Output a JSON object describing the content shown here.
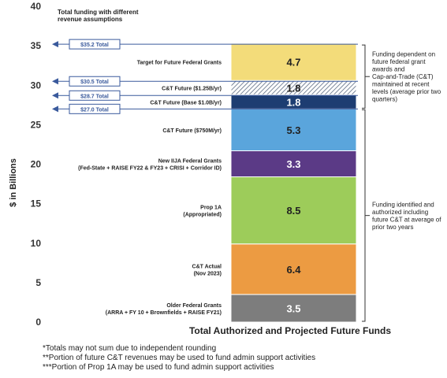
{
  "chart_data": {
    "type": "bar",
    "stacked": true,
    "title": "Total Authorized and Projected Future Funds",
    "ylabel": "$ in Billions",
    "ylim": [
      0,
      40
    ],
    "yticks": [
      "0",
      "5",
      "10",
      "15",
      "20",
      "25",
      "30",
      "35",
      "40"
    ],
    "header_note": [
      "Total funding with different",
      "revenue assumptions"
    ],
    "segments": [
      {
        "name": [
          "Older Federal Grants",
          "(ARRA + FY 10 + Brownfields + RAISE FY21)"
        ],
        "value": 3.5,
        "label": "3.5",
        "color": "#7d7d7d",
        "text_color": "#ffffff"
      },
      {
        "name": [
          "C&T Actual",
          "(Nov 2023)"
        ],
        "value": 6.4,
        "label": "6.4",
        "color": "#ec9b42",
        "text_color": "#222222"
      },
      {
        "name": [
          "Prop 1A",
          "(Appropriated)"
        ],
        "value": 8.5,
        "label": "8.5",
        "color": "#9dcc5a",
        "text_color": "#222222"
      },
      {
        "name": [
          "New IIJA Federal Grants",
          "(Fed-State + RAISE FY22 & FY23 + CRISI + Corridor ID)"
        ],
        "value": 3.3,
        "label": "3.3",
        "color": "#5b3a86",
        "text_color": "#ffffff"
      },
      {
        "name": [
          "C&T Future ($750M/yr)"
        ],
        "value": 5.3,
        "label": "5.3",
        "color": "#5aa5dc",
        "text_color": "#222222"
      },
      {
        "name": [
          "C&T Future (Base $1.0B/yr)"
        ],
        "value": 1.8,
        "label": "1.8",
        "color": "#1d3d72",
        "text_color": "#ffffff"
      },
      {
        "name": [
          "C&T Future ($1.25B/yr)"
        ],
        "value": 1.8,
        "label": "1.8",
        "color": "hatch",
        "text_color": "#222222"
      },
      {
        "name": [
          "Target for Future Federal Grants"
        ],
        "value": 4.7,
        "label": "4.7",
        "color": "#f3dc7a",
        "text_color": "#222222"
      }
    ],
    "callouts": [
      {
        "label": "$35.2 Total",
        "value": 35.2
      },
      {
        "label": "$30.5 Total",
        "value": 30.5
      },
      {
        "label": "$28.7 Total",
        "value": 28.7
      },
      {
        "label": "$27.0 Total",
        "value": 27.0
      }
    ],
    "brackets": [
      {
        "range": [
          27.0,
          35.2
        ],
        "text": [
          "Funding dependent on",
          "future federal grant",
          "awards and",
          "Cap-and-Trade (C&T)",
          "maintained at recent",
          "levels (average prior two",
          "quarters)"
        ]
      },
      {
        "range": [
          0,
          27.0
        ],
        "text": [
          "Funding identified and",
          "authorized including",
          "future C&T at average of",
          "prior two years"
        ]
      }
    ],
    "notes": [
      "*Totals may not sum due to independent rounding",
      "**Portion of future C&T revenues may be used to fund admin support activities",
      "***Portion of  Prop 1A may be used to fund admin support activities"
    ]
  },
  "colors": {
    "callout_stroke": "#3a5a9c",
    "bracket_stroke": "#333333",
    "axis": "#444444"
  }
}
